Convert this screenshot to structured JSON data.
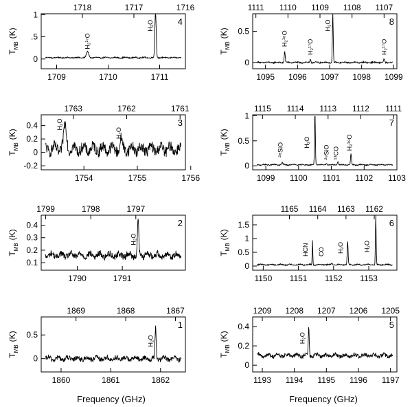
{
  "figure": {
    "x_axis_label": "Frequency (GHz)",
    "y_axis_label": "T",
    "y_axis_label_sub": "MB",
    "y_axis_label_unit": "(K)"
  },
  "chart_data": [
    {
      "type": "line",
      "panel": "4",
      "ylabel": "T_MB (K)",
      "xlabel": "",
      "xlim": [
        1708.7,
        1711.5
      ],
      "ylim": [
        -0.22,
        1.02
      ],
      "x_ticks": [
        1709,
        1710,
        1711
      ],
      "y_ticks": [
        0,
        0.5,
        1
      ],
      "y_tick_labels": [
        "0",
        ".5",
        "1"
      ],
      "top_xlim": [
        1718.8,
        1716.0
      ],
      "top_ticks": [
        1718,
        1717,
        1716
      ],
      "baseline": 0.03,
      "noise": 0.012,
      "lines": [
        {
          "x": 1709.6,
          "peak": 0.14,
          "width": 0.03
        },
        {
          "x": 1710.92,
          "peak": 1.05,
          "width": 0.018
        }
      ],
      "annotations": [
        {
          "text": "H₂¹⁷O",
          "x": 1709.6,
          "y": 0.22
        },
        {
          "text": "H₂O",
          "x": 1710.82,
          "y": 0.62
        }
      ]
    },
    {
      "type": "line",
      "panel": "8",
      "ylabel": "T_MB (K)",
      "xlabel": "",
      "xlim": [
        1094.6,
        1099.1
      ],
      "ylim": [
        -0.1,
        0.78
      ],
      "x_ticks": [
        1095,
        1096,
        1097,
        1098,
        1099
      ],
      "y_ticks": [
        0,
        0.5
      ],
      "y_tick_labels": [
        "0",
        "0.5"
      ],
      "top_xlim": [
        1111.1,
        1106.6
      ],
      "top_ticks": [
        1111,
        1110,
        1109,
        1108,
        1107
      ],
      "baseline": 0.0,
      "noise": 0.01,
      "lines": [
        {
          "x": 1095.6,
          "peak": 0.18,
          "width": 0.02
        },
        {
          "x": 1096.4,
          "peak": 0.05,
          "width": 0.02
        },
        {
          "x": 1097.1,
          "peak": 0.8,
          "width": 0.018
        },
        {
          "x": 1098.7,
          "peak": 0.05,
          "width": 0.02
        }
      ],
      "annotations": [
        {
          "text": "H₂¹⁸O",
          "x": 1095.6,
          "y": 0.25
        },
        {
          "text": "H₂¹⁷O",
          "x": 1096.4,
          "y": 0.12
        },
        {
          "text": "H₂O",
          "x": 1096.95,
          "y": 0.5
        },
        {
          "text": "H₂¹⁷O",
          "x": 1098.7,
          "y": 0.12
        }
      ]
    },
    {
      "type": "line",
      "panel": "3",
      "ylabel": "T_MB (K)",
      "xlabel": "",
      "xlim": [
        1753.2,
        1755.9
      ],
      "ylim": [
        -0.26,
        0.56
      ],
      "x_ticks": [
        1754,
        1755,
        1756
      ],
      "y_ticks": [
        -0.2,
        0,
        0.2,
        0.4
      ],
      "y_tick_labels": [
        "-0.2",
        "0",
        "0.2",
        "0.4"
      ],
      "top_xlim": [
        1763.6,
        1760.9
      ],
      "top_ticks": [
        1763,
        1762,
        1761
      ],
      "baseline": 0.05,
      "noise": 0.08,
      "lines": [
        {
          "x": 1753.65,
          "peak": 0.35,
          "width": 0.04
        },
        {
          "x": 1754.7,
          "peak": 0.12,
          "width": 0.03
        }
      ],
      "annotations": [
        {
          "text": "H₂O",
          "x": 1753.55,
          "y": 0.33
        },
        {
          "text": "H₂O",
          "x": 1754.65,
          "y": 0.2
        }
      ]
    },
    {
      "type": "line",
      "panel": "7",
      "ylabel": "T_MB (K)",
      "xlabel": "",
      "xlim": [
        1098.6,
        1103.0
      ],
      "ylim": [
        -0.08,
        1.02
      ],
      "x_ticks": [
        1099,
        1100,
        1101,
        1102,
        1103
      ],
      "y_ticks": [
        0,
        0.5,
        1
      ],
      "y_tick_labels": [
        "0",
        "0.5",
        "1"
      ],
      "top_xlim": [
        1115.3,
        1110.9
      ],
      "top_ticks": [
        1115,
        1114,
        1113,
        1112,
        1111
      ],
      "baseline": 0.02,
      "noise": 0.01,
      "lines": [
        {
          "x": 1099.5,
          "peak": 0.04,
          "width": 0.03
        },
        {
          "x": 1100.5,
          "peak": 1.05,
          "width": 0.018
        },
        {
          "x": 1100.85,
          "peak": 0.04,
          "width": 0.02
        },
        {
          "x": 1101.2,
          "peak": 0.06,
          "width": 0.02
        },
        {
          "x": 1101.6,
          "peak": 0.22,
          "width": 0.02
        }
      ],
      "annotations": [
        {
          "text": "²⁸SiO",
          "x": 1099.45,
          "y": 0.17
        },
        {
          "text": "H₂O",
          "x": 1100.25,
          "y": 0.35
        },
        {
          "text": "²⁹SiO",
          "x": 1100.85,
          "y": 0.12
        },
        {
          "text": "¹³CO",
          "x": 1101.15,
          "y": 0.12
        },
        {
          "text": "H₂¹⁸O",
          "x": 1101.55,
          "y": 0.3
        }
      ]
    },
    {
      "type": "line",
      "panel": "2",
      "ylabel": "T_MB (K)",
      "xlabel": "",
      "xlim": [
        1789.2,
        1792.4
      ],
      "ylim": [
        0.04,
        0.48
      ],
      "x_ticks": [
        1790,
        1791
      ],
      "y_ticks": [
        0.1,
        0.2,
        0.3,
        0.4
      ],
      "y_tick_labels": [
        "0.1",
        "0.2",
        "0.3",
        "0.4"
      ],
      "top_xlim": [
        1799.1,
        1795.9
      ],
      "top_ticks": [
        1799,
        1798,
        1797
      ],
      "baseline": 0.16,
      "noise": 0.025,
      "lines": [
        {
          "x": 1791.35,
          "peak": 0.28,
          "width": 0.02
        }
      ],
      "annotations": [
        {
          "text": "H₂O",
          "x": 1791.25,
          "y": 0.24
        }
      ]
    },
    {
      "type": "line",
      "panel": "6",
      "ylabel": "T_MB (K)",
      "xlabel": "",
      "xlim": [
        1149.7,
        1153.8
      ],
      "ylim": [
        -0.15,
        1.85
      ],
      "x_ticks": [
        1150,
        1151,
        1152,
        1153
      ],
      "y_ticks": [
        0,
        0.5,
        1,
        1.5
      ],
      "y_tick_labels": [
        "0",
        "0.5",
        "1",
        "1.5"
      ],
      "top_xlim": [
        1166.3,
        1161.2
      ],
      "top_ticks": [
        1165,
        1164,
        1163,
        1162
      ],
      "baseline": 0.05,
      "noise": 0.02,
      "lines": [
        {
          "x": 1151.4,
          "peak": 0.9,
          "width": 0.012
        },
        {
          "x": 1151.95,
          "peak": 0.05,
          "width": 0.02
        },
        {
          "x": 1152.4,
          "peak": 0.85,
          "width": 0.018
        },
        {
          "x": 1153.2,
          "peak": 1.8,
          "width": 0.015
        }
      ],
      "annotations": [
        {
          "text": "HCN",
          "x": 1151.2,
          "y": 0.35
        },
        {
          "text": "CO",
          "x": 1151.65,
          "y": 0.35
        },
        {
          "text": "H₂O",
          "x": 1152.2,
          "y": 0.45
        },
        {
          "text": "H₂O",
          "x": 1152.95,
          "y": 0.5
        }
      ]
    },
    {
      "type": "line",
      "panel": "1",
      "ylabel": "T_MB (K)",
      "xlabel": "",
      "xlim": [
        1859.6,
        1862.5
      ],
      "ylim": [
        -0.28,
        0.88
      ],
      "x_ticks": [
        1860,
        1861,
        1862
      ],
      "y_ticks": [
        0,
        0.5
      ],
      "y_tick_labels": [
        "0",
        "0.5"
      ],
      "top_xlim": [
        1869.7,
        1866.8
      ],
      "top_ticks": [
        1869,
        1868,
        1867
      ],
      "baseline": 0.0,
      "noise": 0.05,
      "lines": [
        {
          "x": 1861.9,
          "peak": 0.65,
          "width": 0.015
        }
      ],
      "annotations": [
        {
          "text": "H₂O",
          "x": 1861.8,
          "y": 0.25
        }
      ]
    },
    {
      "type": "line",
      "panel": "5",
      "ylabel": "T_MB (K)",
      "xlabel": "Frequency (GHz)",
      "xlim": [
        1192.7,
        1197.2
      ],
      "ylim": [
        -0.07,
        0.5
      ],
      "x_ticks": [
        1193,
        1194,
        1195,
        1196,
        1197
      ],
      "y_ticks": [
        0,
        0.2,
        0.4
      ],
      "y_tick_labels": [
        "0",
        "0.2",
        "0.4"
      ],
      "top_xlim": [
        1209.3,
        1204.8
      ],
      "top_ticks": [
        1209,
        1208,
        1207,
        1206,
        1205
      ],
      "baseline": 0.1,
      "noise": 0.02,
      "lines": [
        {
          "x": 1194.45,
          "peak": 0.3,
          "width": 0.02
        }
      ],
      "annotations": [
        {
          "text": "H₂O",
          "x": 1194.25,
          "y": 0.22
        }
      ]
    }
  ]
}
